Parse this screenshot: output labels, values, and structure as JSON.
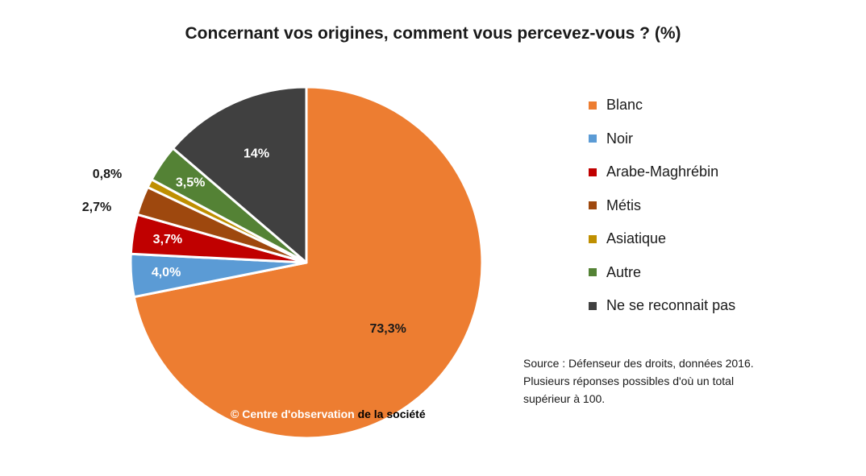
{
  "title": "Concernant vos origines, comment vous percevez-vous ? (%)",
  "chart_data": {
    "type": "pie",
    "title": "Concernant vos origines, comment vous percevez-vous ? (%)",
    "slices": [
      {
        "name": "Blanc",
        "value": 73.3,
        "label": "73,3%",
        "color": "#ED7D31"
      },
      {
        "name": "Noir",
        "value": 4.0,
        "label": "4,0%",
        "color": "#5B9BD5"
      },
      {
        "name": "Arabe-Maghrébin",
        "value": 3.7,
        "label": "3,7%",
        "color": "#C00000"
      },
      {
        "name": "Métis",
        "value": 2.7,
        "label": "2,7%",
        "color": "#9E480E"
      },
      {
        "name": "Asiatique",
        "value": 0.8,
        "label": "0,8%",
        "color": "#BF8F00"
      },
      {
        "name": "Autre",
        "value": 3.5,
        "label": "3,5%",
        "color": "#548235"
      },
      {
        "name": "Ne se reconnait pas",
        "value": 14,
        "label": "14%",
        "color": "#404040"
      }
    ],
    "legend_position": "right"
  },
  "source": {
    "line1": "Source : Défenseur des droits, données 2016.",
    "line2": "Plusieurs réponses possibles d'où un total",
    "line3": "supérieur à 100."
  },
  "watermark": {
    "part1": "© Centre  d'observation ",
    "part2": "de la société"
  }
}
